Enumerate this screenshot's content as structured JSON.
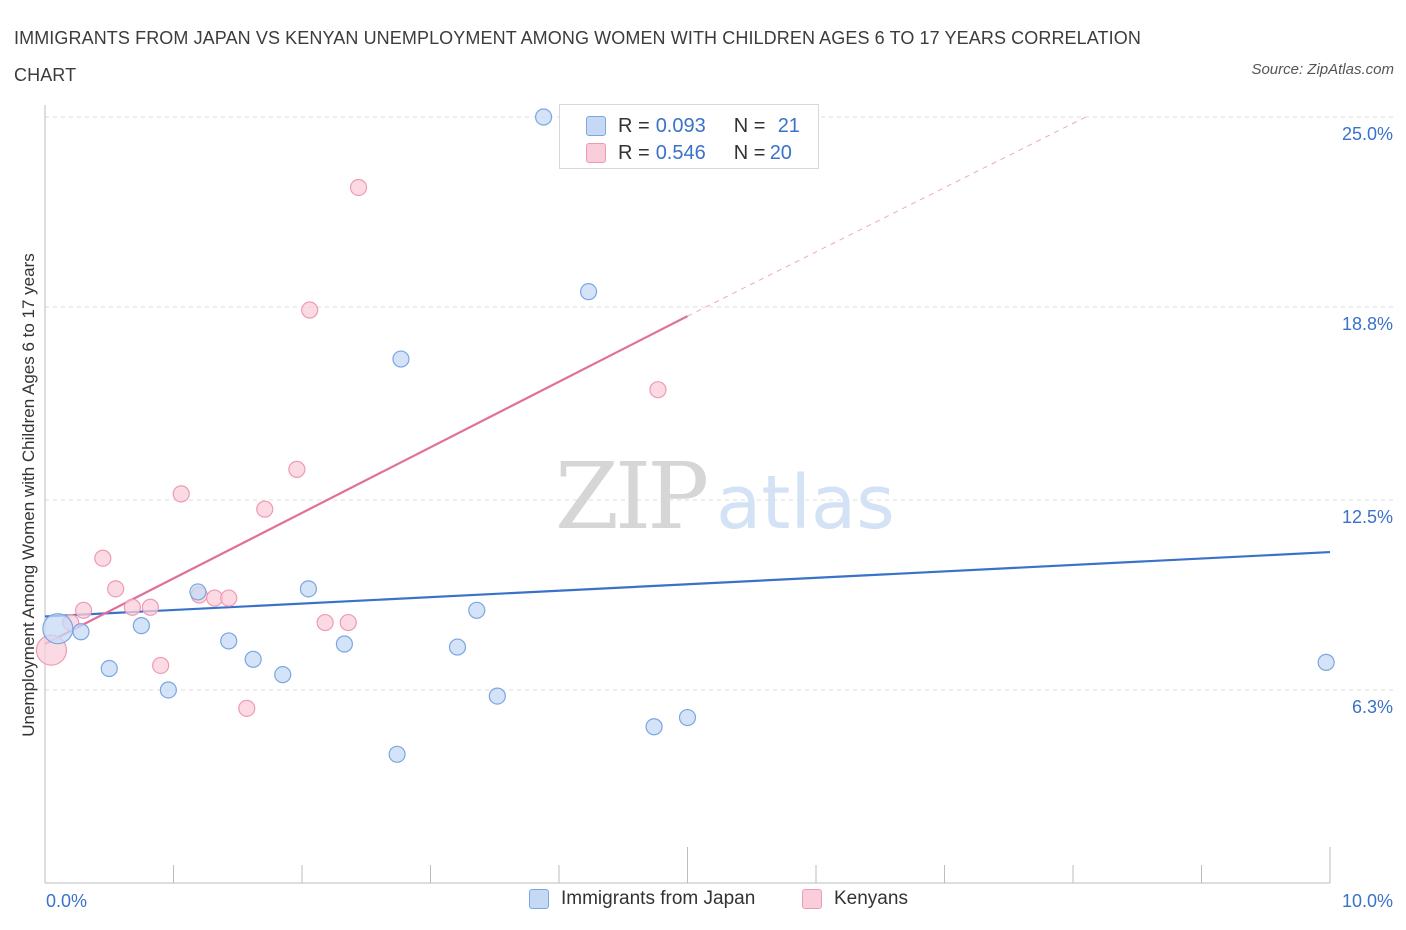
{
  "title": "IMMIGRANTS FROM JAPAN VS KENYAN UNEMPLOYMENT AMONG WOMEN WITH CHILDREN AGES 6 TO 17 YEARS CORRELATION CHART",
  "source": "Source: ZipAtlas.com",
  "watermark": {
    "zip": "ZIP",
    "atlas": "atlas"
  },
  "legend": {
    "series1": {
      "r_label": "R = ",
      "r_value": "0.093",
      "n_label": "N = ",
      "n_value": "21"
    },
    "series2": {
      "r_label": "R = ",
      "r_value": "0.546",
      "n_label": "N = ",
      "n_value": "20"
    }
  },
  "colors": {
    "japan_fill": "#c5d9f5",
    "japan_stroke": "#7aa7e0",
    "japan_line": "#3a72c9",
    "kenyan_fill": "#f9cdd9",
    "kenyan_stroke": "#ee9ab3",
    "kenyan_line": "#e0709a",
    "grid": "#dcdcdc",
    "axis_text": "#3a72c9"
  },
  "chart_data": {
    "type": "scatter",
    "title": "IMMIGRANTS FROM JAPAN VS KENYAN UNEMPLOYMENT AMONG WOMEN WITH CHILDREN AGES 6 TO 17 YEARS CORRELATION CHART",
    "xlabel": "",
    "ylabel": "Unemployment Among Women with Children Ages 6 to 17 years",
    "xlim": [
      0,
      10
    ],
    "ylim": [
      0,
      25
    ],
    "x_tick_labels": [
      "0.0%",
      "10.0%"
    ],
    "y_ticks": [
      6.3,
      12.5,
      18.8,
      25.0
    ],
    "y_tick_labels": [
      "6.3%",
      "12.5%",
      "18.8%",
      "25.0%"
    ],
    "grid": true,
    "legend_position": "bottom",
    "series": [
      {
        "name": "Immigrants from Japan",
        "points": [
          {
            "x": 0.1,
            "y": 8.3,
            "big": true
          },
          {
            "x": 0.28,
            "y": 8.2
          },
          {
            "x": 0.5,
            "y": 7.0
          },
          {
            "x": 0.75,
            "y": 8.4
          },
          {
            "x": 0.96,
            "y": 6.3
          },
          {
            "x": 1.19,
            "y": 9.5
          },
          {
            "x": 1.43,
            "y": 7.9
          },
          {
            "x": 1.62,
            "y": 7.3
          },
          {
            "x": 1.85,
            "y": 6.8
          },
          {
            "x": 2.05,
            "y": 9.6
          },
          {
            "x": 2.33,
            "y": 7.8
          },
          {
            "x": 2.77,
            "y": 17.1
          },
          {
            "x": 2.74,
            "y": 4.2
          },
          {
            "x": 3.21,
            "y": 7.7
          },
          {
            "x": 3.36,
            "y": 8.9
          },
          {
            "x": 3.52,
            "y": 6.1
          },
          {
            "x": 3.88,
            "y": 25.0
          },
          {
            "x": 4.23,
            "y": 19.3
          },
          {
            "x": 4.74,
            "y": 5.1
          },
          {
            "x": 5.0,
            "y": 5.4
          },
          {
            "x": 9.97,
            "y": 7.2
          }
        ],
        "trend": {
          "x0": 0.0,
          "y0": 8.7,
          "x1": 10.0,
          "y1": 10.8
        }
      },
      {
        "name": "Kenyans",
        "points": [
          {
            "x": 0.05,
            "y": 7.6,
            "big": true
          },
          {
            "x": 0.2,
            "y": 8.5
          },
          {
            "x": 0.3,
            "y": 8.9
          },
          {
            "x": 0.45,
            "y": 10.6
          },
          {
            "x": 0.55,
            "y": 9.6
          },
          {
            "x": 0.68,
            "y": 9.0
          },
          {
            "x": 0.82,
            "y": 9.0
          },
          {
            "x": 0.9,
            "y": 7.1
          },
          {
            "x": 1.06,
            "y": 12.7
          },
          {
            "x": 1.2,
            "y": 9.4
          },
          {
            "x": 1.32,
            "y": 9.3
          },
          {
            "x": 1.43,
            "y": 9.3
          },
          {
            "x": 1.57,
            "y": 5.7
          },
          {
            "x": 1.71,
            "y": 12.2
          },
          {
            "x": 1.96,
            "y": 13.5
          },
          {
            "x": 2.06,
            "y": 18.7
          },
          {
            "x": 2.18,
            "y": 8.5
          },
          {
            "x": 2.36,
            "y": 8.5
          },
          {
            "x": 2.44,
            "y": 22.7
          },
          {
            "x": 4.77,
            "y": 16.1
          }
        ],
        "trend": {
          "x0": 0.0,
          "y0": 7.8,
          "x1": 5.0,
          "y1": 18.5,
          "dash_to_x": 8.1,
          "dash_to_y": 25.0
        }
      }
    ]
  }
}
